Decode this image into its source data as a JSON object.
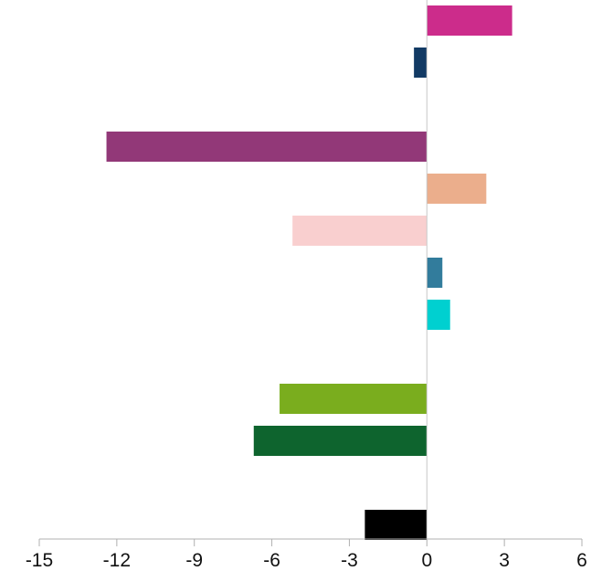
{
  "chart_data": {
    "type": "bar",
    "orientation": "horizontal",
    "title": "",
    "xlabel": "",
    "ylabel": "",
    "xlim": [
      -15,
      6
    ],
    "xticks": [
      "-15",
      "-12",
      "-9",
      "-6",
      "-3",
      "0",
      "3",
      "6"
    ],
    "grid": false,
    "slots": 13,
    "bars": [
      {
        "slot": 0,
        "value": 3.3,
        "color": "#cc2c8b"
      },
      {
        "slot": 1,
        "value": -0.5,
        "color": "#123a64"
      },
      {
        "slot": 3,
        "value": -12.4,
        "color": "#923878"
      },
      {
        "slot": 4,
        "value": 2.3,
        "color": "#ebae8c"
      },
      {
        "slot": 5,
        "value": -5.2,
        "color": "#f9cfcf"
      },
      {
        "slot": 6,
        "value": 0.6,
        "color": "#327c9c"
      },
      {
        "slot": 7,
        "value": 0.9,
        "color": "#00d0d0"
      },
      {
        "slot": 9,
        "value": -5.7,
        "color": "#7aad1e"
      },
      {
        "slot": 10,
        "value": -6.7,
        "color": "#0e642e"
      },
      {
        "slot": 12,
        "value": -2.4,
        "color": "#000000"
      }
    ]
  }
}
